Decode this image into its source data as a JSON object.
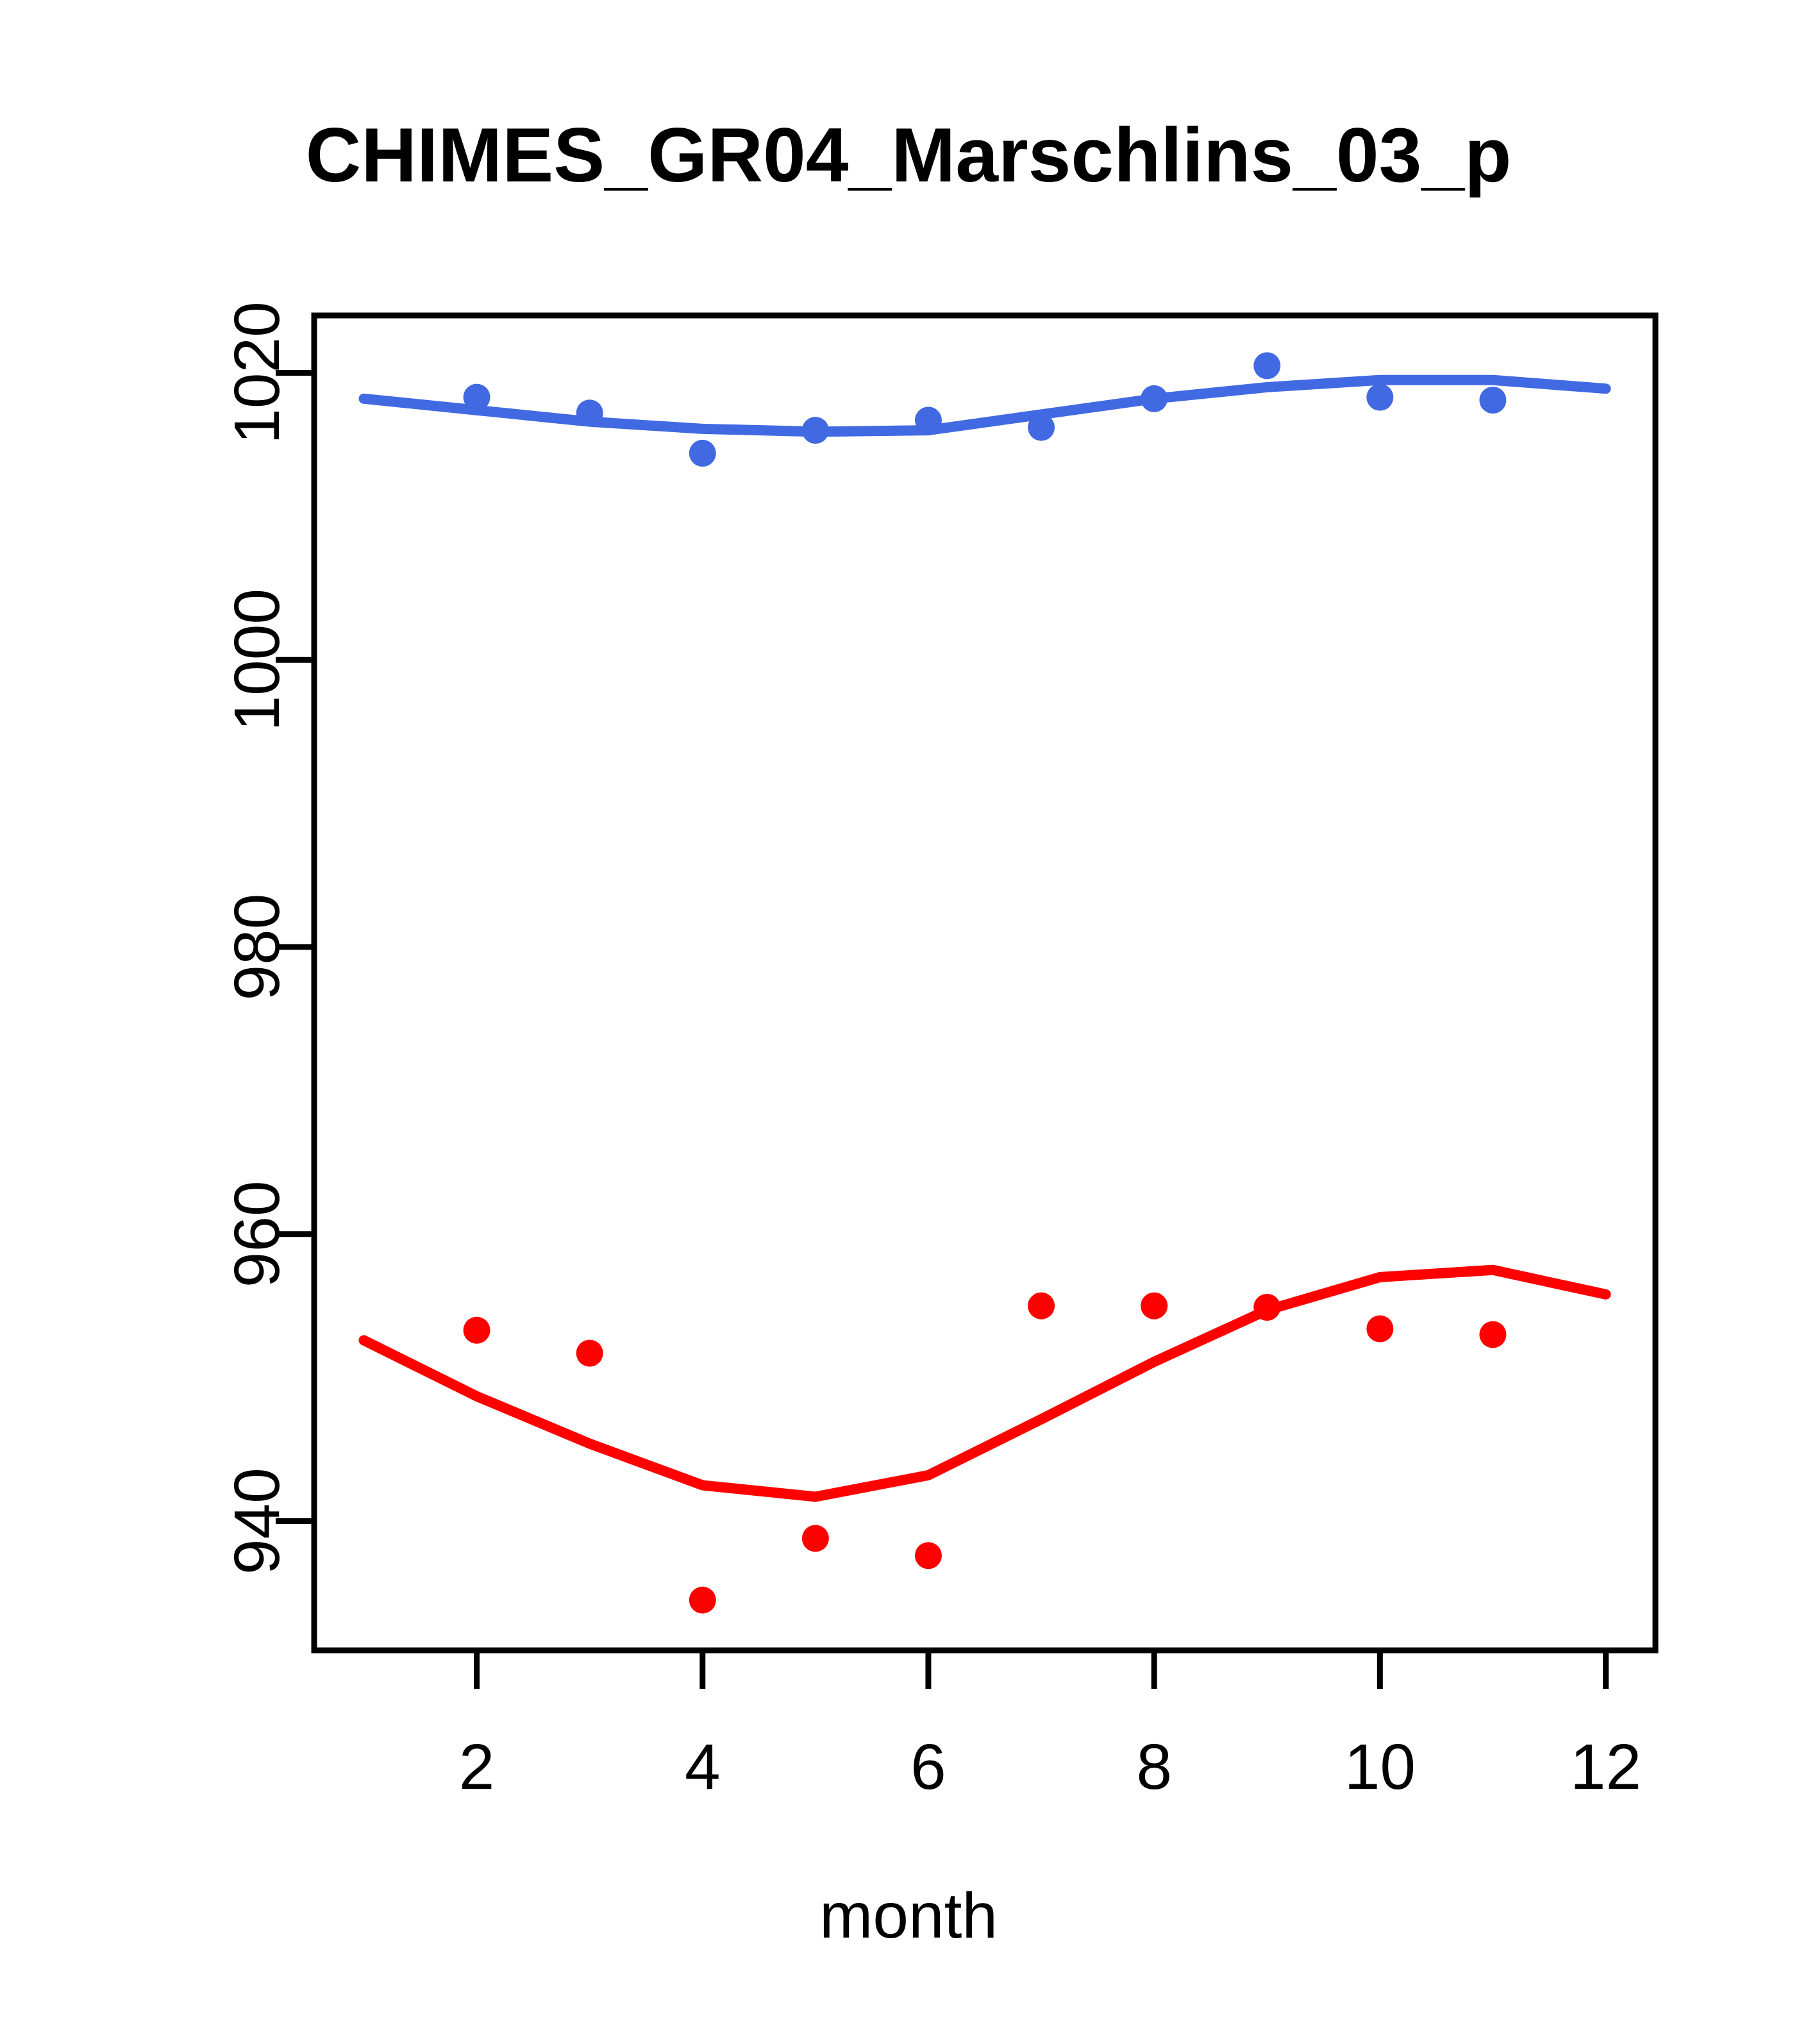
{
  "chart_data": {
    "type": "scatter",
    "title": "CHIMES_GR04_Marschlins_03_p",
    "xlabel": "month",
    "ylabel": "",
    "xlim": [
      0.56,
      12.44
    ],
    "ylim": [
      931,
      1024
    ],
    "x_ticks": [
      2,
      4,
      6,
      8,
      10,
      12
    ],
    "y_ticks": [
      940,
      960,
      980,
      1000,
      1020
    ],
    "grid": false,
    "legend": false,
    "box": true,
    "series": [
      {
        "name": "blue-points",
        "type": "points",
        "color": "#4169E1",
        "x": [
          2,
          3,
          4,
          5,
          6,
          7,
          8,
          9,
          10,
          11
        ],
        "y": [
          1018.3,
          1017.2,
          1014.4,
          1016.0,
          1016.7,
          1016.2,
          1018.2,
          1020.5,
          1018.3,
          1018.1
        ]
      },
      {
        "name": "red-points",
        "type": "points",
        "color": "#FF0000",
        "x": [
          2,
          3,
          4,
          5,
          6,
          7,
          8,
          9,
          10,
          11
        ],
        "y": [
          953.3,
          951.7,
          934.5,
          938.8,
          937.6,
          955.0,
          955.0,
          954.9,
          953.4,
          953.0
        ]
      },
      {
        "name": "blue-lowess-line",
        "type": "line",
        "color": "#4169E1",
        "x": [
          1,
          2,
          3,
          4,
          5,
          6,
          7,
          8,
          9,
          10,
          11,
          12
        ],
        "y": [
          1018.2,
          1017.4,
          1016.6,
          1016.1,
          1015.9,
          1016.0,
          1017.1,
          1018.2,
          1019.0,
          1019.5,
          1019.5,
          1018.9
        ]
      },
      {
        "name": "red-lowess-line",
        "type": "line",
        "color": "#FF0000",
        "x": [
          1,
          2,
          3,
          4,
          5,
          6,
          7,
          8,
          9,
          10,
          11,
          12
        ],
        "y": [
          952.6,
          948.7,
          945.4,
          942.5,
          941.7,
          943.2,
          947.1,
          951.1,
          954.7,
          957.0,
          957.5,
          955.8
        ]
      }
    ]
  }
}
